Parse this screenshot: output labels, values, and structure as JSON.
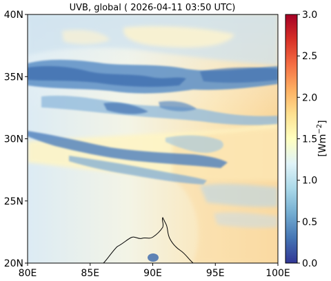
{
  "title": "UVB, global ( 2026-04-11 03:50 UTC)",
  "map": {
    "lon_range": [
      80,
      100
    ],
    "lat_range": [
      20,
      40
    ],
    "x_ticks": [
      {
        "value": 80,
        "label": "80E"
      },
      {
        "value": 85,
        "label": "85E"
      },
      {
        "value": 90,
        "label": "90E"
      },
      {
        "value": 95,
        "label": "95E"
      },
      {
        "value": 100,
        "label": "100E"
      }
    ],
    "y_ticks": [
      {
        "value": 20,
        "label": "20N"
      },
      {
        "value": 25,
        "label": "25N"
      },
      {
        "value": 30,
        "label": "30N"
      },
      {
        "value": 35,
        "label": "35N"
      },
      {
        "value": 40,
        "label": "40N"
      }
    ]
  },
  "colorbar": {
    "label": "[Wm$^{-2}$]",
    "label_base": "[Wm",
    "label_sup": "−2",
    "label_end": "]",
    "range": [
      0.0,
      3.0
    ],
    "ticks": [
      "0.0",
      "0.5",
      "1.0",
      "1.5",
      "2.0",
      "2.5",
      "3.0"
    ],
    "colormap": "RdYlBu_r",
    "colors": [
      "#313695",
      "#4575b4",
      "#74add1",
      "#abd9e9",
      "#e0f3f8",
      "#ffffbf",
      "#fee090",
      "#fdae61",
      "#f46d43",
      "#d73027",
      "#a50026"
    ]
  }
}
